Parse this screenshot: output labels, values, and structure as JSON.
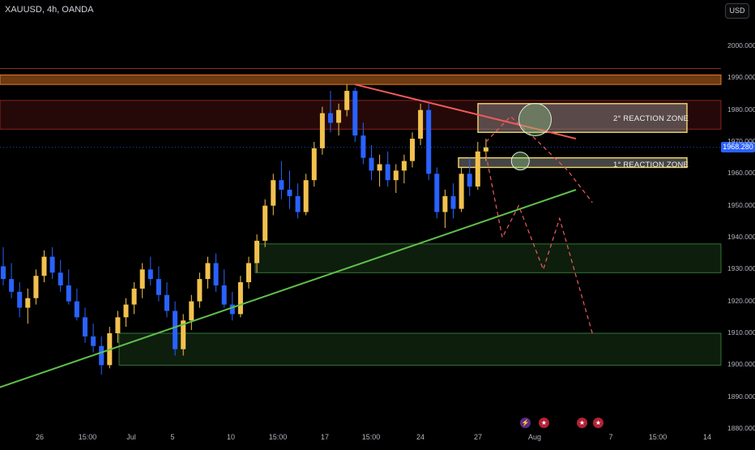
{
  "header": {
    "ticker": "XAUUSD, 4h, OANDA",
    "currency_button": "USD"
  },
  "current_price": {
    "label": "1968.280",
    "value": 1968.28,
    "color": "#2962ff"
  },
  "colors": {
    "up_candle": "#f2c14e",
    "down_candle": "#2962ff",
    "support_zone": "#4caf50",
    "resistance_zone": "#e53935",
    "reaction_zone": "#f5d76e",
    "trend_up": "#5fbf4a",
    "trend_down": "#f05a5a",
    "projection": "#f05a5a",
    "circle": "#8fd18a"
  },
  "annotations": {
    "zone1": "1° REACTION ZONE",
    "zone2": "2° REACTION ZONE"
  },
  "event_icons": [
    "lightning-icon",
    "us-flag-icon",
    "us-flag-icon",
    "us-flag-icon"
  ],
  "chart_data": {
    "type": "candlestick",
    "title": "XAUUSD, 4h, OANDA",
    "ylim": [
      1880,
      2000
    ],
    "y_ticks": [
      "2000.000",
      "1990.000",
      "1980.000",
      "1970.000",
      "1960.000",
      "1950.000",
      "1940.000",
      "1930.000",
      "1920.000",
      "1910.000",
      "1900.000",
      "1890.000",
      "1880.000"
    ],
    "x_ticks": [
      "26",
      "15:00",
      "Jul",
      "5",
      "10",
      "15:00",
      "17",
      "15:00",
      "24",
      "27",
      "Aug",
      "7",
      "15:00",
      "14"
    ],
    "series": [
      {
        "values": [
          [
            0,
            1931,
            1937,
            1925,
            1927
          ],
          [
            1,
            1927,
            1932,
            1921,
            1923
          ],
          [
            2,
            1923,
            1926,
            1915,
            1918
          ],
          [
            3,
            1918,
            1924,
            1913,
            1921
          ],
          [
            4,
            1921,
            1930,
            1919,
            1928
          ],
          [
            5,
            1928,
            1936,
            1926,
            1934
          ],
          [
            6,
            1934,
            1937,
            1927,
            1929
          ],
          [
            7,
            1929,
            1933,
            1923,
            1925
          ],
          [
            8,
            1925,
            1930,
            1919,
            1920
          ],
          [
            9,
            1920,
            1924,
            1914,
            1915
          ],
          [
            10,
            1915,
            1918,
            1907,
            1909
          ],
          [
            11,
            1909,
            1913,
            1904,
            1906
          ],
          [
            12,
            1906,
            1909,
            1897,
            1900
          ],
          [
            13,
            1900,
            1912,
            1899,
            1910
          ],
          [
            14,
            1910,
            1917,
            1907,
            1915
          ],
          [
            15,
            1915,
            1921,
            1912,
            1919
          ],
          [
            16,
            1919,
            1926,
            1916,
            1924
          ],
          [
            17,
            1924,
            1932,
            1921,
            1930
          ],
          [
            18,
            1930,
            1934,
            1925,
            1927
          ],
          [
            19,
            1927,
            1931,
            1920,
            1922
          ],
          [
            20,
            1922,
            1926,
            1915,
            1917
          ],
          [
            21,
            1917,
            1920,
            1903,
            1905
          ],
          [
            22,
            1905,
            1916,
            1903,
            1914
          ],
          [
            23,
            1914,
            1922,
            1911,
            1920
          ],
          [
            24,
            1920,
            1929,
            1918,
            1927
          ],
          [
            25,
            1927,
            1934,
            1924,
            1932
          ],
          [
            26,
            1932,
            1935,
            1923,
            1925
          ],
          [
            27,
            1925,
            1930,
            1918,
            1919
          ],
          [
            28,
            1919,
            1923,
            1914,
            1916
          ],
          [
            29,
            1916,
            1928,
            1915,
            1926
          ],
          [
            30,
            1926,
            1934,
            1924,
            1932
          ],
          [
            31,
            1932,
            1941,
            1929,
            1939
          ],
          [
            32,
            1939,
            1952,
            1937,
            1950
          ],
          [
            33,
            1950,
            1960,
            1947,
            1958
          ],
          [
            34,
            1958,
            1964,
            1952,
            1955
          ],
          [
            35,
            1955,
            1961,
            1949,
            1953
          ],
          [
            36,
            1953,
            1957,
            1946,
            1948
          ],
          [
            37,
            1948,
            1960,
            1947,
            1958
          ],
          [
            38,
            1958,
            1970,
            1956,
            1968
          ],
          [
            39,
            1968,
            1981,
            1966,
            1979
          ],
          [
            40,
            1979,
            1986,
            1973,
            1976
          ],
          [
            41,
            1976,
            1982,
            1972,
            1980
          ],
          [
            42,
            1980,
            1988,
            1978,
            1986
          ],
          [
            43,
            1986,
            1987,
            1970,
            1972
          ],
          [
            44,
            1972,
            1976,
            1963,
            1965
          ],
          [
            45,
            1965,
            1969,
            1958,
            1961
          ],
          [
            46,
            1961,
            1966,
            1956,
            1963
          ],
          [
            47,
            1963,
            1967,
            1956,
            1958
          ],
          [
            48,
            1958,
            1963,
            1954,
            1961
          ],
          [
            49,
            1961,
            1966,
            1957,
            1964
          ],
          [
            50,
            1964,
            1973,
            1962,
            1971
          ],
          [
            51,
            1971,
            1982,
            1969,
            1980
          ],
          [
            52,
            1980,
            1982,
            1958,
            1960
          ],
          [
            53,
            1960,
            1962,
            1946,
            1948
          ],
          [
            54,
            1948,
            1955,
            1943,
            1953
          ],
          [
            55,
            1953,
            1957,
            1946,
            1949
          ],
          [
            56,
            1949,
            1962,
            1948,
            1960
          ],
          [
            57,
            1960,
            1965,
            1953,
            1956
          ],
          [
            58,
            1956,
            1970,
            1955,
            1967
          ],
          [
            59,
            1967,
            1971,
            1964,
            1968.28
          ]
        ]
      }
    ],
    "zones": [
      {
        "name": "resistance-band",
        "low": 1988,
        "high": 1991
      },
      {
        "name": "resistance-zone",
        "low": 1974,
        "high": 1983
      },
      {
        "name": "2nd-reaction-zone",
        "low": 1973,
        "high": 1982
      },
      {
        "name": "1st-reaction-zone",
        "low": 1962,
        "high": 1965
      },
      {
        "name": "upper-support-zone",
        "low": 1929,
        "high": 1938
      },
      {
        "name": "lower-support-zone",
        "low": 1900,
        "high": 1910
      }
    ],
    "trendlines": [
      {
        "name": "ascending-support",
        "points": [
          [
            -0.5,
            1893
          ],
          [
            70,
            1955
          ]
        ]
      },
      {
        "name": "descending-resistance",
        "points": [
          [
            43,
            1988
          ],
          [
            70,
            1971
          ]
        ]
      }
    ],
    "projection": [
      [
        59,
        1966
      ],
      [
        61,
        1940
      ],
      [
        63,
        1950
      ],
      [
        66,
        1930
      ],
      [
        68,
        1946
      ],
      [
        72,
        1910
      ]
    ],
    "projection_upper": [
      [
        59,
        1970
      ],
      [
        62,
        1978
      ],
      [
        65,
        1971
      ],
      [
        69,
        1961
      ],
      [
        72,
        1951
      ]
    ]
  }
}
